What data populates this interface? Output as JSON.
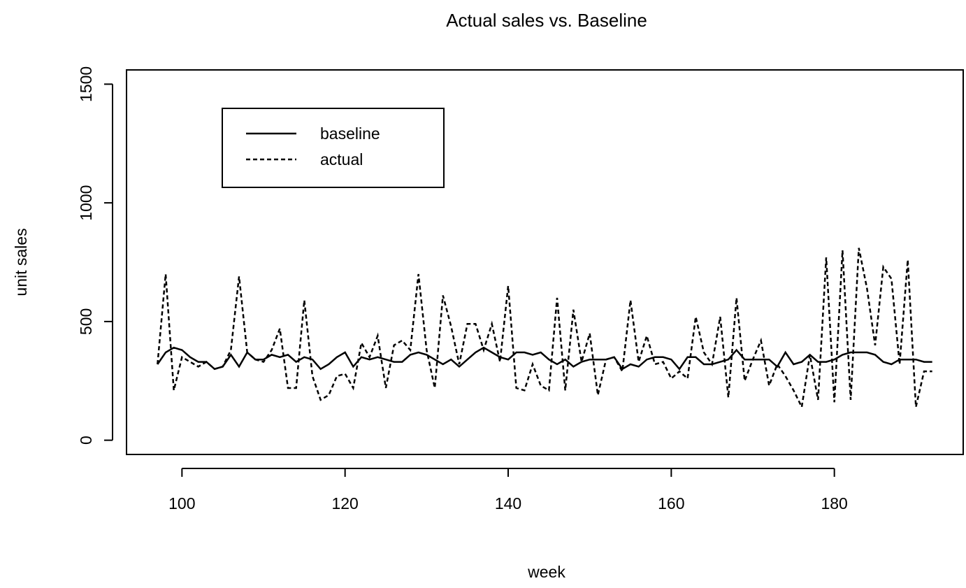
{
  "chart_data": {
    "type": "line",
    "title": "Actual sales vs. Baseline",
    "x_label": "week",
    "y_label": "unit sales",
    "x": [
      97,
      98,
      99,
      100,
      101,
      102,
      103,
      104,
      105,
      106,
      107,
      108,
      109,
      110,
      111,
      112,
      113,
      114,
      115,
      116,
      117,
      118,
      119,
      120,
      121,
      122,
      123,
      124,
      125,
      126,
      127,
      128,
      129,
      130,
      131,
      132,
      133,
      134,
      135,
      136,
      137,
      138,
      139,
      140,
      141,
      142,
      143,
      144,
      145,
      146,
      147,
      148,
      149,
      150,
      151,
      152,
      153,
      154,
      155,
      156,
      157,
      158,
      159,
      160,
      161,
      162,
      163,
      164,
      165,
      166,
      167,
      168,
      169,
      170,
      171,
      172,
      173,
      174,
      175,
      176,
      177,
      178,
      179,
      180,
      181,
      182,
      183,
      184,
      185,
      186,
      187,
      188,
      189,
      190,
      191,
      192
    ],
    "series": [
      {
        "name": "baseline",
        "color": "#000000",
        "line_style": "solid",
        "values": [
          320,
          370,
          390,
          380,
          350,
          330,
          330,
          300,
          310,
          360,
          310,
          370,
          340,
          340,
          360,
          350,
          360,
          330,
          350,
          340,
          300,
          320,
          350,
          370,
          310,
          350,
          340,
          350,
          340,
          330,
          330,
          360,
          370,
          360,
          340,
          320,
          340,
          310,
          340,
          370,
          390,
          370,
          350,
          340,
          370,
          370,
          360,
          370,
          340,
          320,
          340,
          310,
          330,
          340,
          340,
          340,
          350,
          300,
          320,
          310,
          340,
          350,
          350,
          340,
          300,
          350,
          350,
          320,
          320,
          330,
          340,
          380,
          340,
          340,
          340,
          340,
          310,
          370,
          320,
          330,
          360,
          330,
          330,
          340,
          360,
          370,
          370,
          370,
          360,
          330,
          320,
          340,
          340,
          340,
          330,
          330
        ]
      },
      {
        "name": "actual",
        "color": "#000000",
        "line_style": "dashed",
        "values": [
          320,
          700,
          210,
          350,
          330,
          310,
          330,
          300,
          310,
          380,
          690,
          370,
          340,
          330,
          380,
          470,
          220,
          220,
          590,
          270,
          170,
          190,
          270,
          280,
          220,
          410,
          350,
          440,
          220,
          400,
          420,
          380,
          700,
          380,
          220,
          610,
          480,
          320,
          490,
          490,
          380,
          490,
          330,
          650,
          220,
          210,
          320,
          230,
          210,
          600,
          210,
          550,
          330,
          450,
          190,
          340,
          350,
          290,
          590,
          330,
          440,
          320,
          330,
          260,
          290,
          260,
          520,
          370,
          320,
          520,
          180,
          600,
          250,
          340,
          420,
          230,
          320,
          270,
          210,
          140,
          360,
          170,
          770,
          160,
          800,
          170,
          810,
          640,
          400,
          730,
          680,
          320,
          760,
          140,
          290,
          290
        ]
      }
    ],
    "xlim": [
      93.2,
      195.8
    ],
    "xticks": [
      100,
      120,
      140,
      160,
      180
    ],
    "ylim": [
      -60,
      1560
    ],
    "yticks": [
      0,
      500,
      1000,
      1500
    ],
    "legend": "top-left",
    "grid": false
  }
}
